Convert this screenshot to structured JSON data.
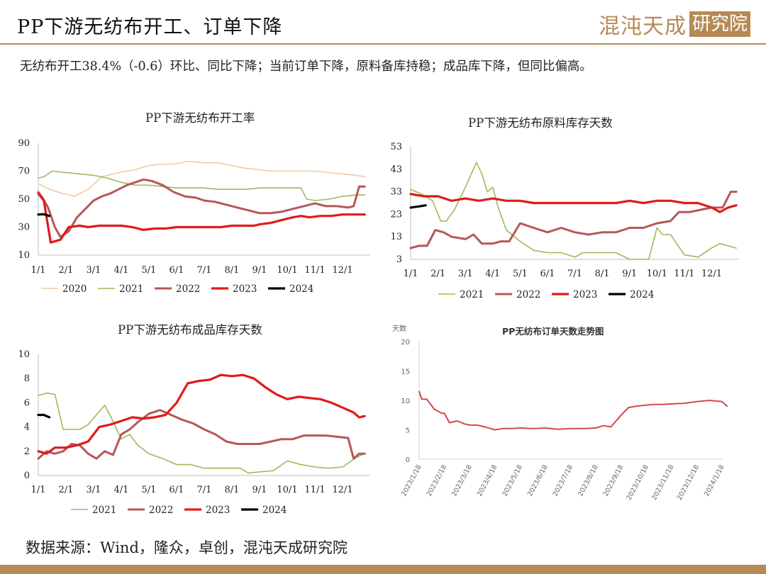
{
  "header": {
    "title": "PP下游无纺布开工、订单下降",
    "logo_script": "混沌天成",
    "logo_box": "研究院"
  },
  "summary": "无纺布开工38.4%（-0.6）环比、同比下降；当前订单下降，原料备库持稳；成品库下降，但同比偏高。",
  "source": "数据来源：Wind，隆众，卓创，混沌天成研究院",
  "colors": {
    "2020": "#f2c9a1",
    "2021": "#9bbb59",
    "2022": "#b5575a",
    "2023": "#e01b1b",
    "2024": "#000000",
    "accent": "#b68a55",
    "order_line": "#d04a4a"
  },
  "chart_data": [
    {
      "type": "line",
      "title": "PP下游无纺布开工率",
      "xticks": [
        "1/1",
        "2/1",
        "3/1",
        "4/1",
        "5/1",
        "6/1",
        "7/1",
        "8/1",
        "9/1",
        "10/1",
        "11/1",
        "12/1"
      ],
      "ylim": [
        10,
        90
      ],
      "yticks": [
        "10",
        "30",
        "50",
        "70",
        "90"
      ],
      "legend": "bottom",
      "series": [
        {
          "name": "2020",
          "x": [
            0,
            0.4,
            0.9,
            1.3,
            1.8,
            2.3,
            2.9,
            3.5,
            4,
            4.5,
            4.9,
            5.4,
            6,
            6.5,
            7,
            7.5,
            8,
            8.5,
            9,
            9.5,
            10,
            10.5,
            11,
            11.5,
            11.8
          ],
          "y": [
            61,
            57,
            54,
            52,
            57,
            66,
            69,
            71,
            74,
            75,
            75,
            77,
            76,
            76,
            74,
            72,
            71,
            70,
            70,
            70,
            70,
            69,
            68,
            67,
            66
          ]
        },
        {
          "name": "2021",
          "x": [
            0,
            0.2,
            0.5,
            1,
            1.5,
            2,
            2.5,
            3,
            3.5,
            4,
            4.5,
            5,
            5.5,
            6,
            6.5,
            7,
            7.5,
            8,
            8.5,
            9,
            9.5,
            9.7,
            10,
            10.5,
            11,
            11.5,
            11.8
          ],
          "y": [
            65,
            66,
            70,
            69,
            68,
            67,
            65,
            62,
            60,
            60,
            59,
            58,
            58,
            58,
            57,
            57,
            57,
            58,
            58,
            58,
            58,
            50,
            49,
            50,
            52,
            53,
            53
          ]
        },
        {
          "name": "2022",
          "x": [
            0,
            0.15,
            0.35,
            0.6,
            0.8,
            1.1,
            1.4,
            1.7,
            2,
            2.3,
            2.6,
            2.9,
            3.2,
            3.5,
            3.8,
            4.1,
            4.5,
            4.9,
            5.3,
            5.7,
            6,
            6.4,
            6.8,
            7.2,
            7.6,
            8,
            8.4,
            8.8,
            9.2,
            9.6,
            10,
            10.4,
            10.8,
            11.2,
            11.4,
            11.6,
            11.8
          ],
          "y": [
            55,
            51,
            44,
            30,
            23,
            27,
            37,
            43,
            49,
            52,
            54,
            57,
            60,
            62,
            64,
            63,
            60,
            55,
            52,
            51,
            49,
            48,
            46,
            44,
            42,
            40,
            40,
            41,
            43,
            45,
            47,
            45,
            45,
            44,
            45,
            59,
            59
          ]
        },
        {
          "name": "2023",
          "x": [
            0,
            0.2,
            0.45,
            0.8,
            1.1,
            1.5,
            1.8,
            2.2,
            2.6,
            3,
            3.4,
            3.8,
            4.2,
            4.6,
            5,
            5.4,
            5.8,
            6.2,
            6.6,
            7,
            7.4,
            7.8,
            8,
            8.4,
            8.8,
            9.2,
            9.5,
            9.8,
            10.2,
            10.6,
            11,
            11.4,
            11.8
          ],
          "y": [
            54,
            49,
            19,
            21,
            30,
            31,
            30,
            31,
            31,
            31,
            30,
            28,
            29,
            29,
            30,
            30,
            30,
            30,
            30,
            31,
            31,
            31,
            32,
            33,
            35,
            37,
            38,
            37,
            38,
            38,
            39,
            39,
            39
          ]
        },
        {
          "name": "2024",
          "x": [
            0,
            0.2,
            0.4
          ],
          "y": [
            39,
            39.2,
            38
          ]
        }
      ]
    },
    {
      "type": "line",
      "title": "PP下游无纺布原料库存天数",
      "xticks": [
        "1/1",
        "2/1",
        "3/1",
        "4/1",
        "5/1",
        "6/1",
        "7/1",
        "8/1",
        "9/1",
        "10/1",
        "11/1",
        "12/1"
      ],
      "ylim": [
        3,
        53
      ],
      "yticks": [
        "3",
        "13",
        "23",
        "33",
        "43",
        "53"
      ],
      "legend": "bottom",
      "series": [
        {
          "name": "2021",
          "x": [
            0,
            0.4,
            0.8,
            1.1,
            1.3,
            1.6,
            2,
            2.4,
            2.6,
            2.8,
            3,
            3.2,
            3.5,
            4,
            4.5,
            5,
            5.5,
            6,
            6.3,
            6.6,
            7,
            7.5,
            8,
            8.3,
            8.7,
            9,
            9.2,
            9.5,
            10,
            10.5,
            11,
            11.3,
            11.6,
            11.9
          ],
          "y": [
            34,
            32,
            29,
            20,
            20,
            25,
            35,
            46,
            41,
            33,
            35,
            26,
            16,
            11,
            7,
            6,
            6,
            4,
            6,
            6,
            6,
            6,
            3,
            3,
            3,
            17,
            14,
            14,
            5,
            4,
            8,
            10,
            9,
            8
          ]
        },
        {
          "name": "2022",
          "x": [
            0,
            0.3,
            0.6,
            0.9,
            1.2,
            1.5,
            2,
            2.3,
            2.6,
            3,
            3.3,
            3.6,
            4,
            4.5,
            5,
            5.5,
            6,
            6.5,
            7,
            7.5,
            8,
            8.5,
            9,
            9.5,
            9.8,
            10.2,
            10.6,
            11,
            11.4,
            11.7,
            11.9
          ],
          "y": [
            8,
            9,
            9,
            16,
            15,
            13,
            12,
            14,
            10,
            10,
            11,
            11,
            19,
            17,
            15,
            17,
            15,
            14,
            15,
            15,
            17,
            17,
            19,
            20,
            24,
            24,
            25,
            26,
            26,
            33,
            33
          ]
        },
        {
          "name": "2023",
          "x": [
            0,
            0.5,
            1,
            1.5,
            2,
            2.5,
            3,
            3.5,
            4,
            4.5,
            5,
            5.5,
            6,
            6.5,
            7,
            7.5,
            8,
            8.5,
            9,
            9.5,
            10,
            10.5,
            11,
            11.3,
            11.6,
            11.9
          ],
          "y": [
            32,
            31,
            31,
            29,
            30,
            29,
            30,
            29,
            29,
            28,
            28,
            28,
            28,
            28,
            28,
            28,
            29,
            28,
            29,
            29,
            28,
            28,
            26,
            24,
            26,
            27
          ]
        },
        {
          "name": "2024",
          "x": [
            0,
            0.3,
            0.55
          ],
          "y": [
            26,
            26.5,
            27
          ]
        }
      ]
    },
    {
      "type": "line",
      "title": "PP下游无纺布成品库存天数",
      "xticks": [
        "1/1",
        "2/1",
        "3/1",
        "4/1",
        "5/1",
        "6/1",
        "7/1",
        "8/1",
        "9/1",
        "10/1",
        "11/1",
        "12/1"
      ],
      "ylim": [
        0,
        10
      ],
      "yticks": [
        "0",
        "2",
        "4",
        "6",
        "8",
        "10"
      ],
      "legend": "bottom",
      "series": [
        {
          "name": "2021",
          "x": [
            0,
            0.3,
            0.6,
            0.9,
            1.2,
            1.5,
            1.8,
            2.1,
            2.4,
            2.7,
            3,
            3.3,
            3.6,
            4,
            4.5,
            5,
            5.5,
            6,
            6.5,
            7,
            7.3,
            7.6,
            8,
            8.5,
            9,
            9.5,
            10,
            10.5,
            11,
            11.5,
            11.8
          ],
          "y": [
            6.6,
            6.8,
            6.7,
            3.8,
            3.8,
            3.8,
            4.2,
            5.0,
            5.8,
            4.5,
            3.0,
            3.4,
            2.5,
            1.8,
            1.4,
            0.9,
            0.9,
            0.6,
            0.6,
            0.6,
            0.6,
            0.2,
            0.3,
            0.4,
            1.2,
            0.9,
            0.7,
            0.6,
            0.7,
            1.5,
            1.8
          ]
        },
        {
          "name": "2022",
          "x": [
            0,
            0.3,
            0.6,
            0.9,
            1.2,
            1.5,
            1.8,
            2.1,
            2.4,
            2.7,
            3,
            3.3,
            3.6,
            4,
            4.4,
            4.8,
            5.2,
            5.6,
            6,
            6.4,
            6.8,
            7.2,
            7.6,
            8,
            8.4,
            8.8,
            9.2,
            9.6,
            10,
            10.4,
            10.8,
            11.2,
            11.4,
            11.6,
            11.8
          ],
          "y": [
            1.4,
            2.0,
            1.8,
            2.0,
            2.6,
            2.5,
            1.8,
            1.4,
            2.0,
            1.7,
            3.4,
            3.8,
            4.4,
            5.1,
            5.4,
            5.0,
            4.6,
            4.3,
            3.8,
            3.4,
            2.8,
            2.6,
            2.6,
            2.6,
            2.8,
            3.0,
            3.0,
            3.3,
            3.3,
            3.3,
            3.2,
            3.1,
            1.4,
            1.8,
            1.8
          ]
        },
        {
          "name": "2023",
          "x": [
            0,
            0.3,
            0.6,
            1,
            1.4,
            1.8,
            2.2,
            2.6,
            3,
            3.4,
            3.8,
            4.2,
            4.6,
            5,
            5.4,
            5.8,
            6.2,
            6.6,
            7,
            7.4,
            7.8,
            8.2,
            8.6,
            9,
            9.4,
            9.8,
            10.2,
            10.6,
            11,
            11.4,
            11.6,
            11.8
          ],
          "y": [
            2.0,
            1.8,
            2.3,
            2.3,
            2.5,
            2.8,
            4.0,
            4.2,
            4.5,
            4.8,
            4.7,
            4.8,
            5.0,
            6.0,
            7.6,
            7.8,
            7.9,
            8.3,
            8.2,
            8.3,
            8.0,
            7.3,
            6.7,
            6.3,
            6.5,
            6.4,
            6.3,
            6.0,
            5.6,
            5.2,
            4.8,
            4.9
          ]
        },
        {
          "name": "2024",
          "x": [
            0,
            0.2,
            0.4
          ],
          "y": [
            5.0,
            5.0,
            4.8
          ]
        }
      ]
    },
    {
      "type": "line",
      "title": "PP无纺布订单天数走势图",
      "ylabel": "天数",
      "ylim": [
        0,
        20
      ],
      "yticks": [
        "0",
        "5",
        "10",
        "15",
        "20"
      ],
      "xticks": [
        "2023/1/18",
        "2023/2/18",
        "2023/3/18",
        "2023/4/18",
        "2023/5/18",
        "2023/6/18",
        "2023/7/18",
        "2023/8/18",
        "2023/9/18",
        "2023/10/18",
        "2023/11/18",
        "2023/12/18",
        "2024/1/18"
      ],
      "series": [
        {
          "x": [
            0,
            0.1,
            0.3,
            0.6,
            0.9,
            1,
            1.2,
            1.5,
            1.8,
            2,
            2.3,
            2.6,
            3,
            3.3,
            3.6,
            4,
            4.5,
            5,
            5.5,
            6,
            6.5,
            7,
            7.3,
            7.6,
            8,
            8.3,
            8.6,
            9,
            9.3,
            9.6,
            10,
            10.5,
            11,
            11.5,
            12,
            12.2
          ],
          "y": [
            11.5,
            10.2,
            10.2,
            8.5,
            7.8,
            7.8,
            6.2,
            6.5,
            6.0,
            5.8,
            5.8,
            5.5,
            5.0,
            5.2,
            5.2,
            5.3,
            5.2,
            5.3,
            5.1,
            5.2,
            5.2,
            5.3,
            5.7,
            5.5,
            7.5,
            8.8,
            9.0,
            9.2,
            9.3,
            9.3,
            9.4,
            9.5,
            9.8,
            10.0,
            9.8,
            9.0
          ]
        }
      ]
    }
  ]
}
